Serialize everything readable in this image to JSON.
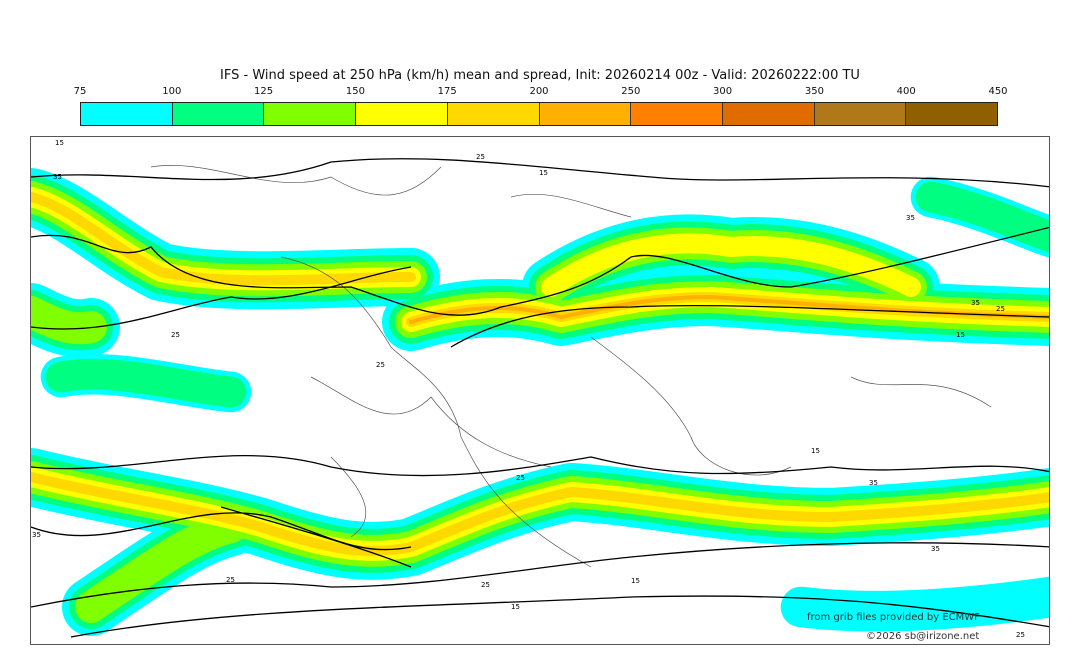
{
  "title": "IFS - Wind speed at 250 hPa (km/h) mean and spread, Init: 20260214 00z - Valid: 20260222:00 TU",
  "colorbar": {
    "ticks": [
      "75",
      "100",
      "125",
      "150",
      "175",
      "200",
      "250",
      "300",
      "350",
      "400",
      "450"
    ],
    "colors": [
      "#00ffff",
      "#00ff80",
      "#80ff00",
      "#ffff00",
      "#ffd800",
      "#ffb000",
      "#ff8000",
      "#e06c00",
      "#b07818",
      "#906000"
    ]
  },
  "contour_labels": [
    "15",
    "35",
    "25",
    "15",
    "25",
    "35",
    "35",
    "25",
    "15",
    "25",
    "15",
    "35",
    "25",
    "35",
    "25",
    "15",
    "25",
    "35",
    "15",
    "25"
  ],
  "credits": {
    "source": "from grib files provided by ECMWF",
    "copyright": "©2026 sb@irizone.net"
  }
}
